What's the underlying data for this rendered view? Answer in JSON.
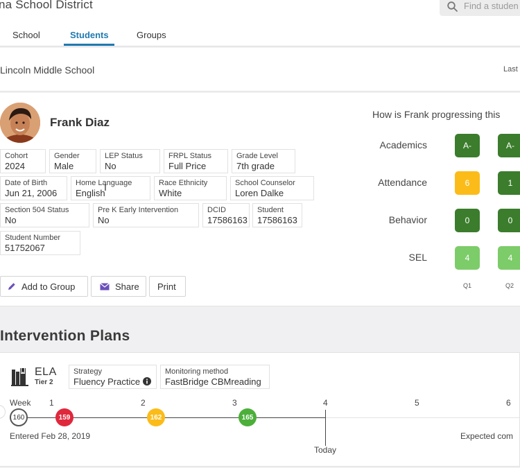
{
  "header": {
    "district": "na School District",
    "search_placeholder": "Find a studen",
    "tabs": [
      {
        "label": "School"
      },
      {
        "label": "Students"
      },
      {
        "label": "Groups"
      }
    ]
  },
  "school": {
    "name": "Lincoln Middle School",
    "last_label": "Last"
  },
  "student": {
    "name": "Frank Diaz",
    "fields": {
      "cohort": {
        "label": "Cohort",
        "value": "2024"
      },
      "gender": {
        "label": "Gender",
        "value": "Male"
      },
      "lep": {
        "label": "LEP Status",
        "value": "No"
      },
      "frpl": {
        "label": "FRPL Status",
        "value": "Full Price"
      },
      "grade": {
        "label": "Grade Level",
        "value": "7th grade"
      },
      "dob": {
        "label": "Date of Birth",
        "value": "Jun 21, 2006"
      },
      "language": {
        "label": "Home Language",
        "value": "English"
      },
      "race": {
        "label": "Race Ethnicity",
        "value": "White"
      },
      "counselor": {
        "label": "School Counselor",
        "value": "Loren Dalke"
      },
      "section504": {
        "label": "Section 504 Status",
        "value": "No"
      },
      "prek": {
        "label": "Pre K Early Intervention",
        "value": "No"
      },
      "dcid": {
        "label": "DCID",
        "value": "17586163"
      },
      "student": {
        "label": "Student",
        "value": "17586163"
      },
      "student_number": {
        "label": "Student Number",
        "value": "51752067"
      }
    },
    "actions": {
      "add_group": "Add to Group",
      "share": "Share",
      "print": "Print"
    }
  },
  "progress": {
    "question": "How is Frank progressing this",
    "metrics": [
      {
        "name": "Academics",
        "q1": "A-",
        "q2": "A-"
      },
      {
        "name": "Attendance",
        "q1": "6",
        "q2": "1"
      },
      {
        "name": "Behavior",
        "q1": "0",
        "q2": "0"
      },
      {
        "name": "SEL",
        "q1": "4",
        "q2": "4"
      }
    ],
    "quarters": [
      "Q1",
      "Q2"
    ]
  },
  "colors": {
    "dark_green": "#3b7d2c",
    "light_green": "#7dcc6a",
    "yellow": "#fbbc1a",
    "red": "#e0283c",
    "mid_green": "#4caf3a",
    "accent_blue": "#1f7ab0"
  },
  "intervention": {
    "title": "Intervention Plans",
    "subject": "ELA",
    "tier": "Tier 2",
    "strategy": {
      "label": "Strategy",
      "value": "Fluency Practice"
    },
    "monitoring": {
      "label": "Monitoring method",
      "value": "FastBridge CBMreading"
    },
    "week_label": "Week",
    "weeks": [
      "1",
      "2",
      "3",
      "4",
      "5",
      "6"
    ],
    "scores": [
      "160",
      "159",
      "162",
      "165"
    ],
    "entered": "Entered Feb 28, 2019",
    "expected": "Expected com",
    "today": "Today"
  }
}
